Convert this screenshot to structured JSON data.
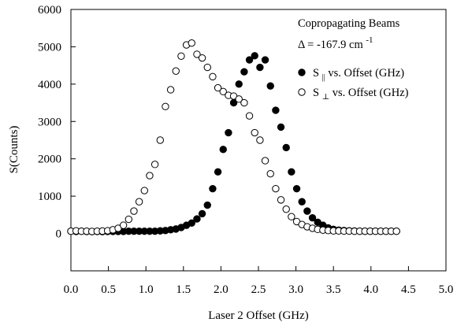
{
  "chart_data": {
    "type": "scatter",
    "xlabel": "Laser 2 Offset (GHz)",
    "ylabel": "S(Counts)",
    "xlim": [
      0.0,
      5.0
    ],
    "ylim": [
      -1000,
      6000
    ],
    "x_ticks": [
      "0.0",
      "0.5",
      "1.0",
      "1.5",
      "2.0",
      "2.5",
      "3.0",
      "3.5",
      "4.0",
      "4.5",
      "5.0"
    ],
    "y_ticks": [
      "0",
      "1000",
      "2000",
      "3000",
      "4000",
      "5000",
      "6000"
    ],
    "grid": false,
    "legend_position": "top-right",
    "annotations": {
      "line1": "Copropagating Beams",
      "line2_prefix": "Δ = -167.9 cm",
      "line2_superscript": "-1"
    },
    "series": [
      {
        "name": "S|| vs. Offset (GHz)",
        "legend_main": "S",
        "legend_sub": "||",
        "legend_rest": " vs. Offset (GHz)",
        "marker": "filled-circle",
        "x": [
          0.0,
          0.07,
          0.14,
          0.21,
          0.28,
          0.35,
          0.42,
          0.49,
          0.56,
          0.63,
          0.7,
          0.77,
          0.84,
          0.91,
          0.98,
          1.05,
          1.12,
          1.19,
          1.26,
          1.33,
          1.4,
          1.47,
          1.54,
          1.61,
          1.68,
          1.75,
          1.82,
          1.89,
          1.96,
          2.03,
          2.1,
          2.17,
          2.24,
          2.31,
          2.38,
          2.45,
          2.52,
          2.59,
          2.66,
          2.73,
          2.8,
          2.87,
          2.94,
          3.01,
          3.08,
          3.15,
          3.22,
          3.29,
          3.36,
          3.43,
          3.5,
          3.57,
          3.64,
          3.71,
          3.78,
          3.85,
          3.92,
          3.99,
          4.06,
          4.13,
          4.2,
          4.27,
          4.34
        ],
        "y": [
          60,
          55,
          60,
          55,
          50,
          55,
          50,
          55,
          55,
          55,
          55,
          60,
          60,
          60,
          60,
          60,
          60,
          70,
          80,
          100,
          120,
          160,
          220,
          280,
          390,
          530,
          760,
          1200,
          1650,
          2250,
          2700,
          3500,
          4000,
          4330,
          4650,
          4760,
          4450,
          4650,
          3950,
          3300,
          2850,
          2300,
          1650,
          1200,
          850,
          600,
          420,
          300,
          220,
          150,
          110,
          90,
          80,
          70,
          65,
          60,
          60,
          60,
          60,
          60,
          60,
          60,
          60
        ]
      },
      {
        "name": "S⊥ vs. Offset (GHz)",
        "legend_main": "S",
        "legend_sub": "⊥",
        "legend_rest": " vs. Offset (GHz)",
        "marker": "open-circle",
        "x": [
          0.0,
          0.07,
          0.14,
          0.21,
          0.28,
          0.35,
          0.42,
          0.49,
          0.56,
          0.63,
          0.7,
          0.77,
          0.84,
          0.91,
          0.98,
          1.05,
          1.12,
          1.19,
          1.26,
          1.33,
          1.4,
          1.47,
          1.54,
          1.61,
          1.68,
          1.75,
          1.82,
          1.89,
          1.96,
          2.03,
          2.1,
          2.17,
          2.24,
          2.31,
          2.38,
          2.45,
          2.52,
          2.59,
          2.66,
          2.73,
          2.8,
          2.87,
          2.94,
          3.01,
          3.08,
          3.15,
          3.22,
          3.29,
          3.36,
          3.43,
          3.5,
          3.57,
          3.64,
          3.71,
          3.78,
          3.85,
          3.92,
          3.99,
          4.06,
          4.13,
          4.2,
          4.27,
          4.34
        ],
        "y": [
          60,
          70,
          60,
          60,
          55,
          60,
          65,
          75,
          100,
          140,
          220,
          380,
          600,
          850,
          1150,
          1550,
          1850,
          2500,
          3400,
          3850,
          4350,
          4750,
          5050,
          5100,
          4800,
          4700,
          4450,
          4200,
          3900,
          3800,
          3700,
          3680,
          3600,
          3500,
          3150,
          2700,
          2500,
          1950,
          1600,
          1200,
          900,
          650,
          450,
          320,
          240,
          180,
          140,
          110,
          90,
          80,
          70,
          70,
          65,
          65,
          60,
          60,
          60,
          60,
          60,
          60,
          60,
          60,
          60
        ]
      }
    ]
  }
}
